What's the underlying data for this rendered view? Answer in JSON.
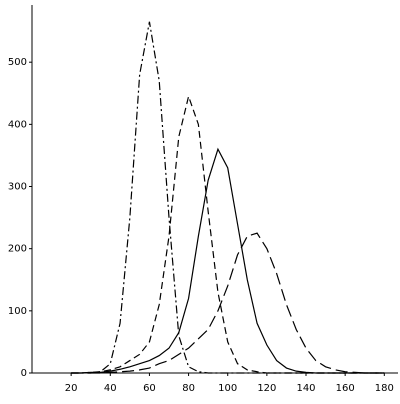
{
  "chart_data": {
    "type": "line",
    "x": [
      20,
      25,
      30,
      35,
      40,
      45,
      50,
      55,
      60,
      65,
      70,
      75,
      80,
      85,
      90,
      95,
      100,
      105,
      110,
      115,
      120,
      125,
      130,
      135,
      140,
      145,
      150,
      155,
      160,
      165,
      170,
      175,
      180
    ],
    "series": [
      {
        "color": "#000000",
        "dash": "dashdot",
        "values": [
          0,
          0,
          0,
          2,
          15,
          80,
          250,
          480,
          565,
          470,
          250,
          60,
          10,
          2,
          0,
          0,
          0,
          0,
          0,
          0,
          0,
          0,
          0,
          0,
          0,
          0,
          0,
          0,
          0,
          0,
          0,
          0,
          0
        ]
      },
      {
        "color": "#000000",
        "dash": "dashed",
        "values": [
          0,
          0,
          1,
          2,
          5,
          10,
          20,
          30,
          50,
          110,
          220,
          380,
          445,
          400,
          260,
          130,
          50,
          15,
          5,
          2,
          0,
          0,
          0,
          0,
          0,
          0,
          0,
          0,
          0,
          0,
          0,
          0,
          0
        ]
      },
      {
        "color": "#000000",
        "dash": "solid",
        "values": [
          0,
          0,
          1,
          1,
          3,
          6,
          10,
          15,
          20,
          28,
          40,
          65,
          120,
          220,
          310,
          360,
          330,
          240,
          150,
          80,
          45,
          20,
          8,
          3,
          1,
          0,
          0,
          0,
          0,
          0,
          0,
          0,
          0
        ]
      },
      {
        "color": "#000000",
        "dash": "longdash",
        "values": [
          0,
          0,
          0,
          0,
          1,
          2,
          3,
          5,
          8,
          15,
          20,
          30,
          40,
          55,
          70,
          100,
          140,
          190,
          220,
          225,
          200,
          160,
          110,
          70,
          40,
          20,
          10,
          5,
          2,
          1,
          0,
          0,
          0
        ]
      }
    ],
    "xlim": [
      0,
      187
    ],
    "ylim": [
      0,
      592
    ],
    "xticks": [
      20,
      40,
      60,
      80,
      100,
      120,
      140,
      160,
      180
    ],
    "yticks": [
      0,
      100,
      200,
      300,
      400,
      500
    ],
    "grid": false
  }
}
